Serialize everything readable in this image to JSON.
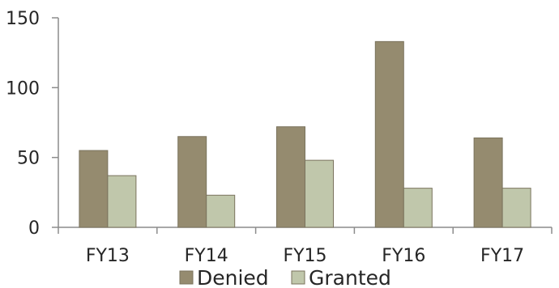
{
  "chart_data": {
    "type": "bar",
    "title": "",
    "xlabel": "",
    "ylabel": "",
    "categories": [
      "FY13",
      "FY14",
      "FY15",
      "FY16",
      "FY17"
    ],
    "series": [
      {
        "name": "Denied",
        "values": [
          55,
          65,
          72,
          133,
          64
        ],
        "color": "#958b6f"
      },
      {
        "name": "Granted",
        "values": [
          37,
          23,
          48,
          28,
          28
        ],
        "color": "#c0c7ab"
      }
    ],
    "ylim": [
      0,
      150
    ],
    "yticks": [
      "0",
      "50",
      "100",
      "150"
    ],
    "grid": false,
    "legend_position": "bottom"
  }
}
